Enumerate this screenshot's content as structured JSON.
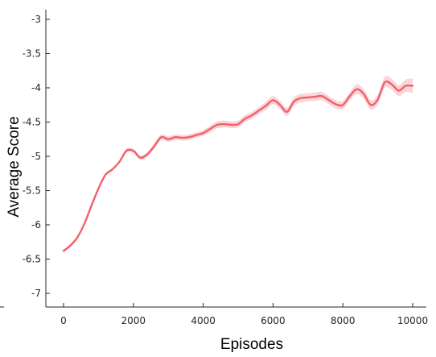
{
  "chart_data": {
    "type": "line",
    "xlabel": "Episodes",
    "ylabel": "Average Score",
    "xlim": [
      -400,
      10300
    ],
    "ylim": [
      -7.2,
      -2.9
    ],
    "xticks": [
      0,
      2000,
      4000,
      6000,
      8000,
      10000
    ],
    "yticks": [
      -7,
      -6.5,
      -6,
      -5.5,
      -5,
      -4.5,
      -4,
      -3.5,
      -3
    ],
    "grid": false,
    "colors": {
      "line": "#f2606b",
      "band": "#fbd0d4"
    },
    "series": [
      {
        "x": [
          0,
          200,
          400,
          600,
          800,
          1000,
          1200,
          1400,
          1600,
          1800,
          2000,
          2200,
          2400,
          2600,
          2800,
          3000,
          3200,
          3400,
          3600,
          3800,
          4000,
          4200,
          4400,
          4600,
          4800,
          5000,
          5200,
          5400,
          5600,
          5800,
          6000,
          6200,
          6400,
          6600,
          6800,
          7000,
          7200,
          7400,
          7600,
          7800,
          8000,
          8200,
          8400,
          8600,
          8800,
          9000,
          9200,
          9400,
          9600,
          9800,
          10000
        ],
        "y": [
          -6.38,
          -6.3,
          -6.18,
          -5.98,
          -5.72,
          -5.47,
          -5.27,
          -5.19,
          -5.08,
          -4.92,
          -4.92,
          -5.02,
          -4.97,
          -4.85,
          -4.72,
          -4.75,
          -4.72,
          -4.73,
          -4.72,
          -4.69,
          -4.66,
          -4.6,
          -4.54,
          -4.53,
          -4.54,
          -4.53,
          -4.45,
          -4.4,
          -4.33,
          -4.26,
          -4.18,
          -4.25,
          -4.35,
          -4.2,
          -4.15,
          -4.14,
          -4.13,
          -4.12,
          -4.18,
          -4.24,
          -4.25,
          -4.12,
          -4.02,
          -4.09,
          -4.25,
          -4.17,
          -3.92,
          -3.95,
          -4.04,
          -3.97,
          -3.97
        ],
        "band": [
          0.02,
          0.02,
          0.02,
          0.02,
          0.02,
          0.02,
          0.02,
          0.02,
          0.02,
          0.03,
          0.03,
          0.03,
          0.03,
          0.04,
          0.04,
          0.04,
          0.04,
          0.04,
          0.04,
          0.04,
          0.04,
          0.05,
          0.05,
          0.05,
          0.05,
          0.05,
          0.05,
          0.05,
          0.05,
          0.06,
          0.06,
          0.06,
          0.06,
          0.06,
          0.06,
          0.06,
          0.06,
          0.06,
          0.06,
          0.06,
          0.06,
          0.06,
          0.07,
          0.07,
          0.07,
          0.07,
          0.08,
          0.08,
          0.08,
          0.09,
          0.11
        ]
      }
    ]
  }
}
